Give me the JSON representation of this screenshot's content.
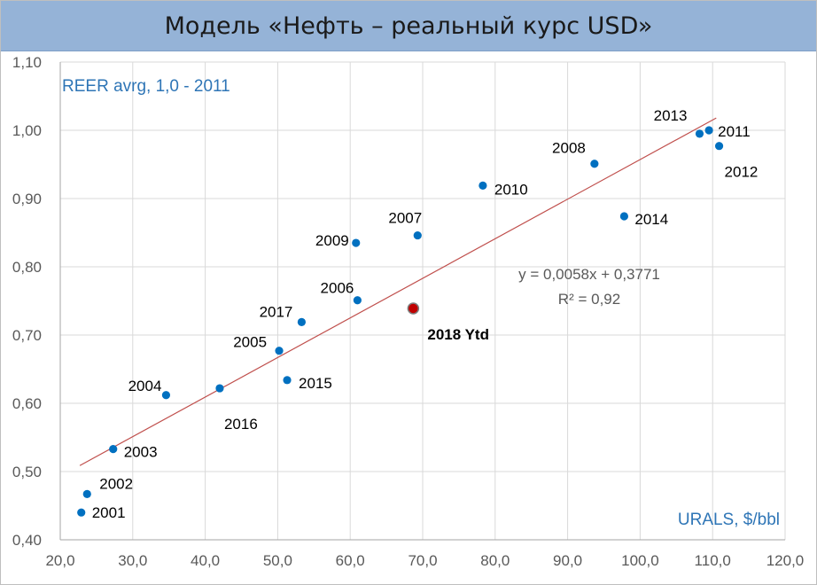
{
  "title": "Модель «Нефть – реальный курс USD»",
  "chart_data": {
    "type": "scatter",
    "xlim": [
      20,
      120
    ],
    "ylim": [
      0.4,
      1.1
    ],
    "x_ticks": [
      "20,0",
      "30,0",
      "40,0",
      "50,0",
      "60,0",
      "70,0",
      "80,0",
      "90,0",
      "100,0",
      "110,0",
      "120,0"
    ],
    "y_ticks": [
      "0,40",
      "0,50",
      "0,60",
      "0,70",
      "0,80",
      "0,90",
      "1,00",
      "1,10"
    ],
    "xlabel": "URALS, $/bbl",
    "ylabel": "REER avrg, 1,0 - 2011",
    "grid": true,
    "points": [
      {
        "label": "2001",
        "x": 22.9,
        "y": 0.44
      },
      {
        "label": "2002",
        "x": 23.7,
        "y": 0.467
      },
      {
        "label": "2003",
        "x": 27.3,
        "y": 0.533
      },
      {
        "label": "2004",
        "x": 34.6,
        "y": 0.612
      },
      {
        "label": "2005",
        "x": 50.2,
        "y": 0.677
      },
      {
        "label": "2006",
        "x": 61.0,
        "y": 0.751
      },
      {
        "label": "2007",
        "x": 69.3,
        "y": 0.846
      },
      {
        "label": "2008",
        "x": 93.7,
        "y": 0.951
      },
      {
        "label": "2009",
        "x": 60.8,
        "y": 0.835
      },
      {
        "label": "2010",
        "x": 78.3,
        "y": 0.919
      },
      {
        "label": "2011",
        "x": 109.5,
        "y": 1.0
      },
      {
        "label": "2012",
        "x": 110.9,
        "y": 0.977
      },
      {
        "label": "2013",
        "x": 108.2,
        "y": 0.995
      },
      {
        "label": "2014",
        "x": 97.8,
        "y": 0.874
      },
      {
        "label": "2015",
        "x": 51.3,
        "y": 0.634
      },
      {
        "label": "2016",
        "x": 42.0,
        "y": 0.622
      },
      {
        "label": "2017",
        "x": 53.3,
        "y": 0.719
      }
    ],
    "highlight": {
      "label": "2018 Ytd",
      "x": 68.7,
      "y": 0.739,
      "color": "#c00000"
    },
    "trendline": {
      "slope": 0.0058,
      "intercept": 0.3771,
      "x_range": [
        22.7,
        110.5
      ],
      "equation": "y = 0,0058x + 0,3771",
      "r2": "R² = 0,92",
      "color": "#c0504d"
    },
    "colors": {
      "points": "#0070c0",
      "label_2017": "#00b0f0",
      "axis_title": "#2e75b6",
      "grid": "#d9d9d9"
    }
  }
}
